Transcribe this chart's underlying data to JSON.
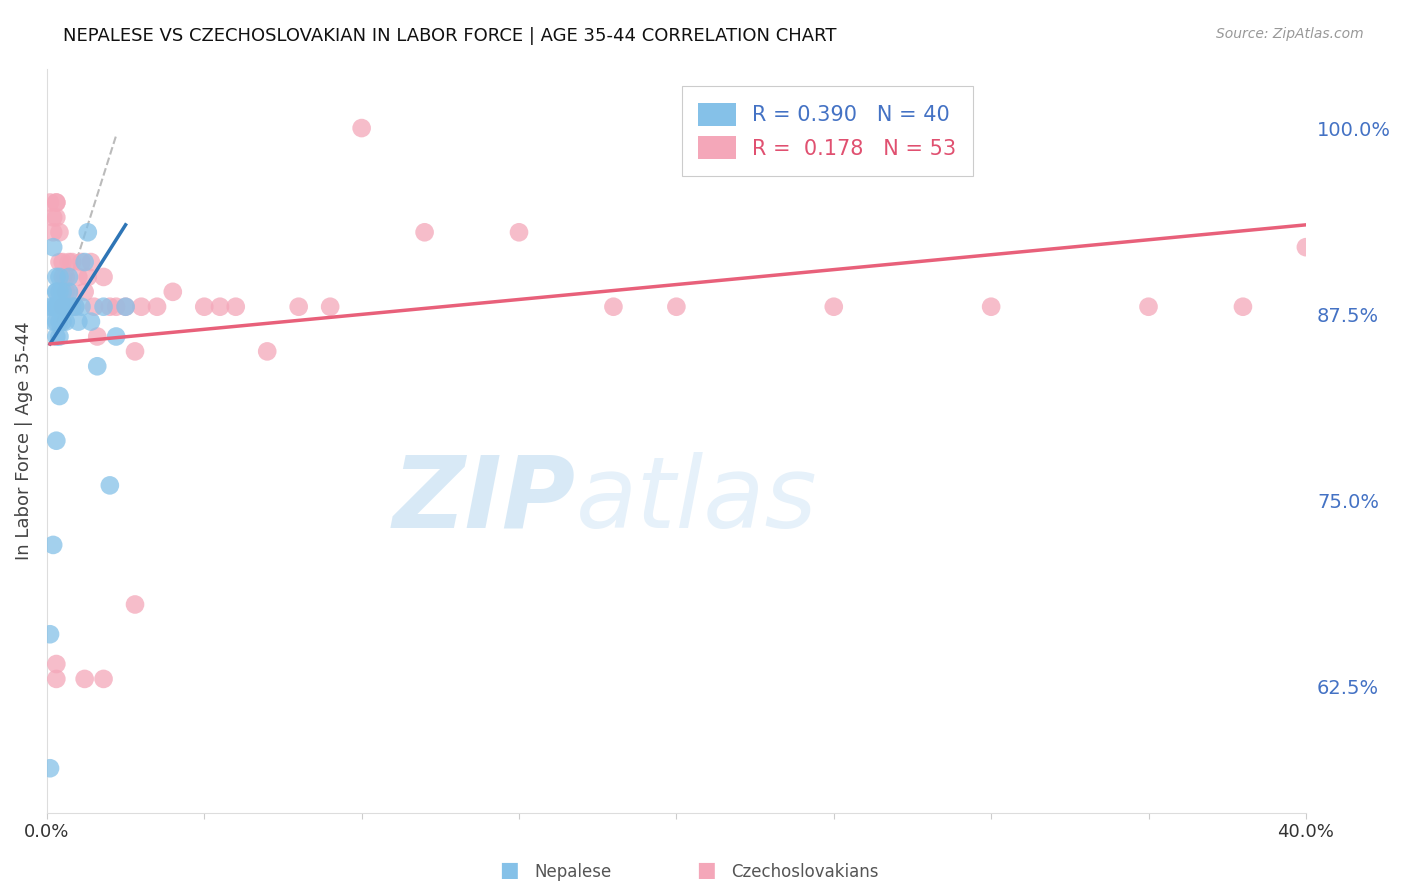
{
  "title": "NEPALESE VS CZECHOSLOVAKIAN IN LABOR FORCE | AGE 35-44 CORRELATION CHART",
  "source": "Source: ZipAtlas.com",
  "ylabel": "In Labor Force | Age 35-44",
  "xlim": [
    0.0,
    0.4
  ],
  "ylim": [
    0.54,
    1.04
  ],
  "yticks": [
    0.625,
    0.75,
    0.875,
    1.0
  ],
  "ytick_labels": [
    "62.5%",
    "75.0%",
    "87.5%",
    "100.0%"
  ],
  "xticks": [
    0.0,
    0.05,
    0.1,
    0.15,
    0.2,
    0.25,
    0.3,
    0.35,
    0.4
  ],
  "blue_color": "#85C1E8",
  "pink_color": "#F4A7B9",
  "trend_blue": "#2E75B6",
  "trend_pink": "#E8607A",
  "R_blue": 0.39,
  "N_blue": 40,
  "R_pink": 0.178,
  "N_pink": 53,
  "watermark_zip": "ZIP",
  "watermark_atlas": "atlas",
  "legend_blue": "Nepalese",
  "legend_pink": "Czechoslovakians",
  "blue_scatter_x": [
    0.001,
    0.001,
    0.002,
    0.002,
    0.002,
    0.003,
    0.003,
    0.003,
    0.003,
    0.003,
    0.003,
    0.003,
    0.004,
    0.004,
    0.004,
    0.004,
    0.004,
    0.005,
    0.005,
    0.005,
    0.006,
    0.006,
    0.007,
    0.007,
    0.008,
    0.009,
    0.01,
    0.011,
    0.012,
    0.013,
    0.014,
    0.016,
    0.018,
    0.02,
    0.022,
    0.025,
    0.001,
    0.002,
    0.003,
    0.004
  ],
  "blue_scatter_y": [
    0.66,
    0.88,
    0.88,
    0.87,
    0.92,
    0.89,
    0.88,
    0.87,
    0.88,
    0.89,
    0.9,
    0.86,
    0.88,
    0.87,
    0.86,
    0.89,
    0.9,
    0.88,
    0.87,
    0.89,
    0.88,
    0.87,
    0.9,
    0.89,
    0.88,
    0.88,
    0.87,
    0.88,
    0.91,
    0.93,
    0.87,
    0.84,
    0.88,
    0.76,
    0.86,
    0.88,
    0.57,
    0.72,
    0.79,
    0.82
  ],
  "pink_scatter_x": [
    0.001,
    0.002,
    0.002,
    0.003,
    0.003,
    0.003,
    0.004,
    0.004,
    0.005,
    0.005,
    0.005,
    0.006,
    0.006,
    0.007,
    0.007,
    0.008,
    0.009,
    0.01,
    0.011,
    0.012,
    0.013,
    0.014,
    0.015,
    0.016,
    0.018,
    0.02,
    0.022,
    0.025,
    0.028,
    0.03,
    0.035,
    0.04,
    0.05,
    0.055,
    0.06,
    0.07,
    0.08,
    0.09,
    0.1,
    0.12,
    0.15,
    0.18,
    0.2,
    0.25,
    0.3,
    0.35,
    0.38,
    0.4,
    0.003,
    0.003,
    0.012,
    0.018,
    0.028
  ],
  "pink_scatter_y": [
    0.95,
    0.94,
    0.93,
    0.95,
    0.94,
    0.95,
    0.91,
    0.93,
    0.9,
    0.91,
    0.88,
    0.89,
    0.9,
    0.91,
    0.89,
    0.91,
    0.88,
    0.9,
    0.91,
    0.89,
    0.9,
    0.91,
    0.88,
    0.86,
    0.9,
    0.88,
    0.88,
    0.88,
    0.85,
    0.88,
    0.88,
    0.89,
    0.88,
    0.88,
    0.88,
    0.85,
    0.88,
    0.88,
    1.0,
    0.93,
    0.93,
    0.88,
    0.88,
    0.88,
    0.88,
    0.88,
    0.88,
    0.92,
    0.63,
    0.64,
    0.63,
    0.63,
    0.68
  ],
  "blue_trend_x": [
    0.001,
    0.025
  ],
  "blue_trend_y": [
    0.855,
    0.935
  ],
  "pink_trend_x": [
    0.001,
    0.4
  ],
  "pink_trend_y": [
    0.855,
    0.935
  ],
  "dash_line_x": [
    0.001,
    0.022
  ],
  "dash_line_y": [
    0.855,
    0.995
  ]
}
